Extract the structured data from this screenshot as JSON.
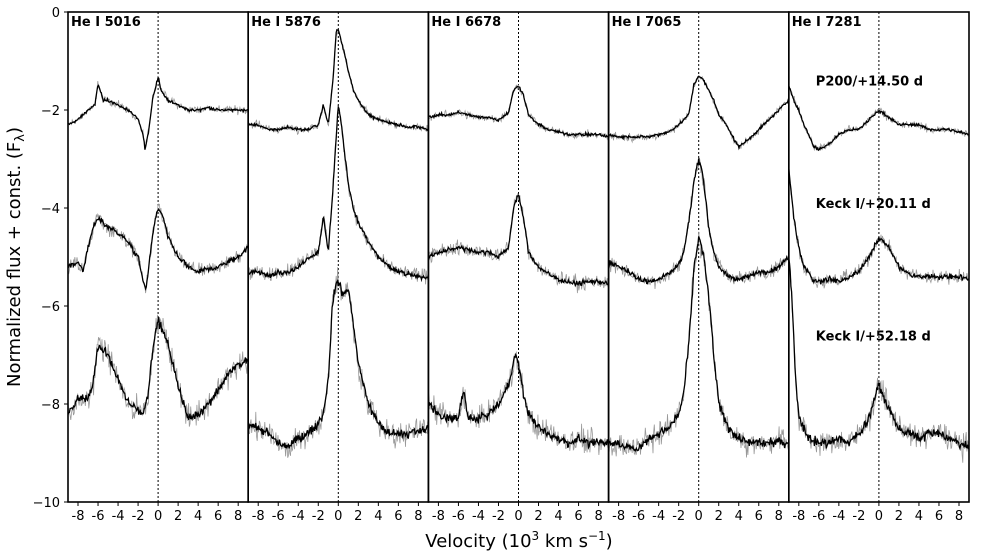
{
  "chart_data": {
    "type": "line",
    "xlabel": "Velocity (10^3 km s^-1)",
    "ylabel": "Normalized flux + const. (Fλ)",
    "ylim": [
      -10,
      0
    ],
    "yticks": [
      0,
      -2,
      -4,
      -6,
      -8,
      -10
    ],
    "ytick_labels": [
      "0",
      "−2",
      "−4",
      "−6",
      "−8",
      "−10"
    ],
    "xlim": [
      -9,
      9
    ],
    "xticks": [
      -8,
      -6,
      -4,
      -2,
      0,
      2,
      4,
      6,
      8
    ],
    "xtick_labels": [
      "-8",
      "-6",
      "-4",
      "-2",
      "0",
      "2",
      "4",
      "6",
      "8"
    ],
    "grid": false,
    "zero_velocity_line": true,
    "line_colors": {
      "smoothed": "#000000",
      "raw": "#999999"
    },
    "epochs": [
      "P200/+14.50 d",
      "Keck I/+20.11 d",
      "Keck I/+52.18 d"
    ],
    "panels": [
      {
        "title": "He I 5016",
        "series": [
          {
            "epoch": "P200/+14.50 d",
            "x": [
              -9,
              -8,
              -7,
              -6.3,
              -6,
              -5.5,
              -5,
              -4,
              -3,
              -2,
              -1.5,
              -1.3,
              -1,
              -0.5,
              -0.3,
              0,
              0.3,
              1,
              2,
              3,
              4,
              5,
              6,
              7,
              8,
              9
            ],
            "y": [
              -2.3,
              -2.2,
              -2.0,
              -1.9,
              -1.45,
              -1.8,
              -1.8,
              -1.9,
              -2.0,
              -2.2,
              -2.5,
              -2.8,
              -2.5,
              -1.7,
              -1.6,
              -1.3,
              -1.6,
              -1.8,
              -1.9,
              -2.0,
              -2.0,
              -1.95,
              -2.0,
              -2.0,
              -2.0,
              -2.0
            ]
          },
          {
            "epoch": "Keck I/+20.11 d",
            "x": [
              -9,
              -8,
              -7.5,
              -7,
              -6.5,
              -6,
              -5,
              -4,
              -3,
              -2,
              -1.5,
              -1.2,
              -1,
              -0.5,
              -0.3,
              0,
              0.5,
              1,
              2,
              3,
              4,
              5,
              6,
              7,
              8,
              9
            ],
            "y": [
              -5.2,
              -5.1,
              -5.3,
              -4.8,
              -4.4,
              -4.2,
              -4.4,
              -4.5,
              -4.7,
              -5.0,
              -5.5,
              -5.65,
              -5.3,
              -4.5,
              -4.25,
              -4.0,
              -4.2,
              -4.6,
              -5.0,
              -5.2,
              -5.3,
              -5.25,
              -5.2,
              -5.1,
              -5.0,
              -4.8
            ]
          },
          {
            "epoch": "Keck I/+52.18 d",
            "x": [
              -9,
              -8,
              -7,
              -6.5,
              -6,
              -5,
              -4,
              -3,
              -2,
              -1.5,
              -1,
              -0.5,
              0,
              0.5,
              1,
              2,
              3,
              4,
              5,
              6,
              7,
              8,
              9
            ],
            "y": [
              -8.2,
              -7.9,
              -7.9,
              -7.6,
              -6.8,
              -7.0,
              -7.5,
              -8.0,
              -8.1,
              -8.2,
              -7.8,
              -6.8,
              -6.3,
              -6.5,
              -6.8,
              -7.6,
              -8.3,
              -8.2,
              -8.0,
              -7.7,
              -7.4,
              -7.2,
              -7.1
            ]
          }
        ]
      },
      {
        "title": "He I 5876",
        "series": [
          {
            "epoch": "P200/+14.50 d",
            "x": [
              -9,
              -8,
              -7,
              -6,
              -5,
              -4,
              -3,
              -2,
              -1.5,
              -1,
              -0.5,
              -0.2,
              0,
              0.3,
              0.7,
              1,
              1.5,
              2,
              3,
              4,
              5,
              6,
              7,
              8,
              9
            ],
            "y": [
              -2.3,
              -2.3,
              -2.4,
              -2.4,
              -2.35,
              -2.4,
              -2.4,
              -2.3,
              -1.9,
              -2.3,
              -1.3,
              -0.4,
              -0.35,
              -0.6,
              -0.9,
              -1.2,
              -1.6,
              -1.8,
              -2.1,
              -2.2,
              -2.25,
              -2.3,
              -2.35,
              -2.35,
              -2.4
            ]
          },
          {
            "epoch": "Keck I/+20.11 d",
            "x": [
              -9,
              -8,
              -7,
              -6,
              -5,
              -4,
              -3,
              -2,
              -1.5,
              -1,
              -0.5,
              0,
              0.3,
              0.7,
              1,
              1.5,
              2,
              3,
              4,
              5,
              6,
              7,
              8,
              9
            ],
            "y": [
              -5.3,
              -5.3,
              -5.4,
              -5.3,
              -5.3,
              -5.2,
              -5.0,
              -4.9,
              -4.15,
              -4.9,
              -3.5,
              -1.9,
              -2.3,
              -3.0,
              -3.5,
              -4.0,
              -4.3,
              -4.7,
              -5.0,
              -5.2,
              -5.3,
              -5.35,
              -5.4,
              -5.4
            ]
          },
          {
            "epoch": "Keck I/+52.18 d",
            "x": [
              -9,
              -8,
              -7,
              -6,
              -5,
              -4,
              -3,
              -2,
              -1.5,
              -1,
              -0.6,
              -0.3,
              0,
              0.5,
              1,
              1.5,
              2,
              3,
              4,
              5,
              6,
              7,
              8,
              9
            ],
            "y": [
              -8.4,
              -8.5,
              -8.6,
              -8.8,
              -8.9,
              -8.7,
              -8.6,
              -8.4,
              -8.2,
              -7.5,
              -6.0,
              -5.6,
              -5.5,
              -5.8,
              -5.6,
              -6.4,
              -7.2,
              -8.0,
              -8.4,
              -8.6,
              -8.6,
              -8.6,
              -8.55,
              -8.5
            ]
          }
        ]
      },
      {
        "title": "He I 6678",
        "series": [
          {
            "epoch": "P200/+14.50 d",
            "x": [
              -9,
              -8,
              -7,
              -6,
              -5,
              -4,
              -3,
              -2,
              -1,
              -0.5,
              0,
              0.5,
              1,
              2,
              3,
              4,
              5,
              6,
              7,
              8,
              9
            ],
            "y": [
              -2.15,
              -2.1,
              -2.1,
              -2.05,
              -2.1,
              -2.15,
              -2.15,
              -2.2,
              -2.05,
              -1.6,
              -1.5,
              -1.7,
              -2.1,
              -2.3,
              -2.4,
              -2.45,
              -2.5,
              -2.5,
              -2.5,
              -2.5,
              -2.55
            ]
          },
          {
            "epoch": "Keck I/+20.11 d",
            "x": [
              -9,
              -8,
              -7,
              -6,
              -5,
              -4,
              -3,
              -2,
              -1,
              -0.5,
              -0.2,
              0,
              0.5,
              1,
              2,
              3,
              4,
              5,
              6,
              7,
              8,
              9
            ],
            "y": [
              -5.0,
              -4.9,
              -4.85,
              -4.8,
              -4.85,
              -4.9,
              -4.9,
              -5.0,
              -4.8,
              -4.0,
              -3.8,
              -3.75,
              -4.2,
              -4.9,
              -5.2,
              -5.35,
              -5.45,
              -5.5,
              -5.55,
              -5.5,
              -5.5,
              -5.55
            ]
          },
          {
            "epoch": "Keck I/+52.18 d",
            "x": [
              -9,
              -8,
              -7,
              -6,
              -5.5,
              -5,
              -4,
              -3,
              -2,
              -1,
              -0.3,
              0,
              0.5,
              1,
              2,
              3,
              4,
              5,
              6,
              7,
              8,
              9
            ],
            "y": [
              -8.0,
              -8.2,
              -8.3,
              -8.3,
              -7.7,
              -8.3,
              -8.3,
              -8.2,
              -8.0,
              -7.6,
              -7.0,
              -7.2,
              -7.8,
              -8.2,
              -8.5,
              -8.6,
              -8.7,
              -8.8,
              -8.7,
              -8.8,
              -8.8,
              -8.8
            ]
          }
        ]
      },
      {
        "title": "He I 7065",
        "series": [
          {
            "epoch": "P200/+14.50 d",
            "x": [
              -9,
              -8,
              -7,
              -6,
              -5,
              -4,
              -3,
              -2,
              -1,
              -0.5,
              0,
              0.5,
              1,
              1.5,
              2,
              2.8,
              3.5,
              4,
              5,
              6,
              7,
              8,
              9
            ],
            "y": [
              -2.5,
              -2.55,
              -2.55,
              -2.55,
              -2.55,
              -2.5,
              -2.45,
              -2.3,
              -2.1,
              -1.5,
              -1.3,
              -1.4,
              -1.6,
              -1.8,
              -2.1,
              -2.3,
              -2.6,
              -2.75,
              -2.6,
              -2.4,
              -2.2,
              -2.0,
              -1.8
            ]
          },
          {
            "epoch": "Keck I/+20.11 d",
            "x": [
              -9,
              -8,
              -7,
              -6,
              -5,
              -4,
              -3,
              -2,
              -1.5,
              -1,
              -0.5,
              0,
              0.3,
              0.7,
              1,
              1.5,
              2,
              3,
              4,
              5,
              6,
              7,
              8,
              9
            ],
            "y": [
              -5.1,
              -5.2,
              -5.3,
              -5.45,
              -5.5,
              -5.45,
              -5.35,
              -5.15,
              -4.9,
              -4.3,
              -3.5,
              -3.0,
              -3.2,
              -3.8,
              -4.4,
              -4.9,
              -5.2,
              -5.4,
              -5.45,
              -5.4,
              -5.3,
              -5.3,
              -5.2,
              -5.0
            ]
          },
          {
            "epoch": "Keck I/+52.18 d",
            "x": [
              -9,
              -8,
              -7,
              -6,
              -5,
              -4,
              -3,
              -2,
              -1.5,
              -1,
              -0.5,
              0,
              0.5,
              1,
              1.5,
              2,
              3,
              4,
              5,
              6,
              7,
              8,
              9
            ],
            "y": [
              -8.8,
              -8.8,
              -8.9,
              -8.9,
              -8.7,
              -8.6,
              -8.5,
              -8.2,
              -7.8,
              -6.8,
              -5.3,
              -4.6,
              -5.0,
              -5.8,
              -7.0,
              -8.0,
              -8.5,
              -8.7,
              -8.8,
              -8.8,
              -8.8,
              -8.75,
              -8.8
            ]
          }
        ]
      },
      {
        "title": "He I 7281",
        "series": [
          {
            "epoch": "P200/+14.50 d",
            "x": [
              -9,
              -8.5,
              -8,
              -7.5,
              -7,
              -6.5,
              -6,
              -5,
              -4,
              -3,
              -2,
              -1,
              0,
              1,
              2,
              3,
              4,
              5,
              6,
              7,
              8,
              9
            ],
            "y": [
              -1.5,
              -1.8,
              -2.0,
              -2.3,
              -2.5,
              -2.75,
              -2.8,
              -2.7,
              -2.5,
              -2.4,
              -2.4,
              -2.2,
              -2.0,
              -2.15,
              -2.3,
              -2.3,
              -2.3,
              -2.4,
              -2.4,
              -2.4,
              -2.45,
              -2.5
            ]
          },
          {
            "epoch": "Keck I/+20.11 d",
            "x": [
              -9,
              -8.5,
              -8,
              -7.5,
              -7,
              -6.5,
              -6,
              -5,
              -4,
              -3,
              -2,
              -1,
              0,
              1,
              2,
              3,
              4,
              5,
              6,
              7,
              8,
              9
            ],
            "y": [
              -3.2,
              -4.2,
              -4.8,
              -5.2,
              -5.3,
              -5.5,
              -5.5,
              -5.45,
              -5.5,
              -5.4,
              -5.3,
              -5.0,
              -4.6,
              -4.8,
              -5.2,
              -5.35,
              -5.4,
              -5.4,
              -5.4,
              -5.4,
              -5.4,
              -5.45
            ]
          },
          {
            "epoch": "Keck I/+52.18 d",
            "x": [
              -9,
              -8.7,
              -8.3,
              -8,
              -7,
              -6,
              -5,
              -4,
              -3,
              -2,
              -1,
              0,
              1,
              2,
              3,
              4,
              5,
              6,
              7,
              8,
              9
            ],
            "y": [
              -5.0,
              -5.8,
              -7.5,
              -8.3,
              -8.7,
              -8.8,
              -8.8,
              -8.7,
              -8.8,
              -8.6,
              -8.3,
              -7.6,
              -8.1,
              -8.5,
              -8.6,
              -8.7,
              -8.6,
              -8.6,
              -8.7,
              -8.8,
              -8.9
            ]
          }
        ]
      }
    ]
  }
}
